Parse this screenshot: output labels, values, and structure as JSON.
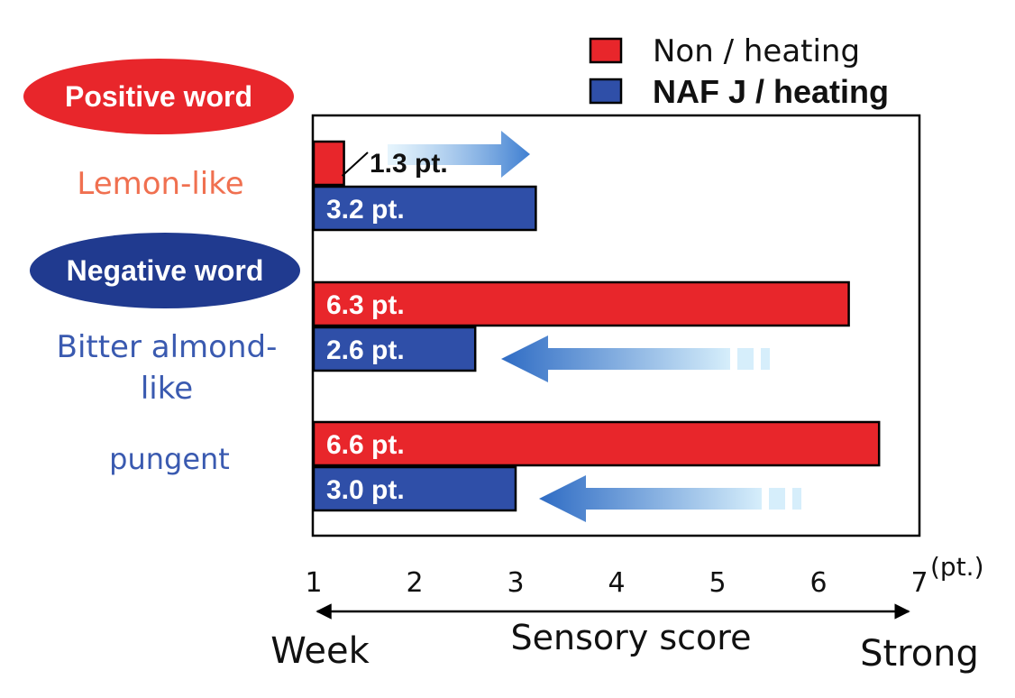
{
  "chart_data": {
    "type": "bar",
    "orientation": "horizontal",
    "unit": "(pt.)",
    "xlim": [
      1,
      7
    ],
    "xticks": [
      "1",
      "2",
      "3",
      "4",
      "5",
      "6",
      "7"
    ],
    "xlabel": "Sensory score",
    "x_min_label": "Week",
    "x_max_label": "Strong",
    "legend": {
      "placement": "top-right",
      "entries": [
        {
          "label": "Non / heating",
          "color": "#e8262b"
        },
        {
          "label": "NAF J / heating",
          "color": "#2f4fa8"
        }
      ]
    },
    "groups": [
      {
        "heading": "Positive word",
        "heading_color": "#e8262b",
        "categories": [
          "Lemon-like"
        ],
        "category_color": "#f07050"
      },
      {
        "heading": "Negative word",
        "heading_color": "#203a8f",
        "categories": [
          "Bitter almond-\nlike",
          "pungent"
        ],
        "category_color": "#3a5ab0"
      }
    ],
    "categories": [
      "Lemon-like",
      "Bitter almond-like",
      "pungent"
    ],
    "series": [
      {
        "name": "Non / heating",
        "values": [
          1.3,
          6.3,
          6.6
        ],
        "labels": [
          "1.3 pt.",
          "6.3 pt.",
          "6.6 pt."
        ],
        "color": "#e8262b"
      },
      {
        "name": "NAF J / heating",
        "values": [
          3.2,
          2.6,
          3.0
        ],
        "labels": [
          "3.2 pt.",
          "2.6 pt.",
          "3.0 pt."
        ],
        "color": "#2f4fa8"
      }
    ],
    "arrows": [
      {
        "category": "Lemon-like",
        "direction": "right"
      },
      {
        "category": "Bitter almond-like",
        "direction": "left"
      },
      {
        "category": "pungent",
        "direction": "left"
      }
    ]
  }
}
